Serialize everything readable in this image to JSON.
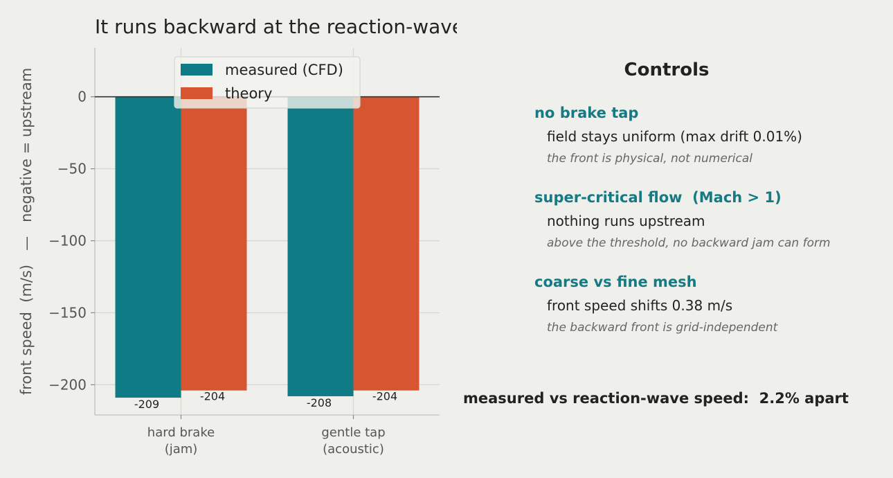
{
  "chart_data": {
    "type": "bar",
    "title": "It runs backward at the reaction-wave speed",
    "ylabel": "front speed  (m/s)   —   negative = upstream",
    "xlabel": "",
    "categories": [
      "hard brake\n(jam)",
      "gentle tap\n(acoustic)"
    ],
    "series": [
      {
        "name": "measured (CFD)",
        "values": [
          -209,
          -208
        ],
        "labels": [
          "-209",
          "-208"
        ],
        "color": "#0f7b86"
      },
      {
        "name": "theory",
        "values": [
          -204,
          -204
        ],
        "labels": [
          "-204",
          "-204"
        ],
        "color": "#d75530"
      }
    ],
    "ylim": [
      -221,
      34
    ],
    "yticks": [
      0,
      -50,
      -100,
      -150,
      -200
    ],
    "ytick_labels": [
      "0",
      "−50",
      "−100",
      "−150",
      "−200"
    ],
    "grid": true,
    "legend": "top-center"
  },
  "controls": {
    "title": "Controls",
    "items": [
      {
        "title": "no brake tap",
        "result": "field stays uniform (max drift 0.01%)",
        "note": "the front is physical, not numerical"
      },
      {
        "title": "super-critical flow  (Mach > 1)",
        "result": "nothing runs upstream",
        "note": "above the threshold, no backward jam can form"
      },
      {
        "title": "coarse vs fine mesh",
        "result": "front speed shifts 0.38 m/s",
        "note": "the backward front is grid-independent"
      }
    ]
  },
  "summary": "measured vs reaction-wave speed:  2.2% apart"
}
